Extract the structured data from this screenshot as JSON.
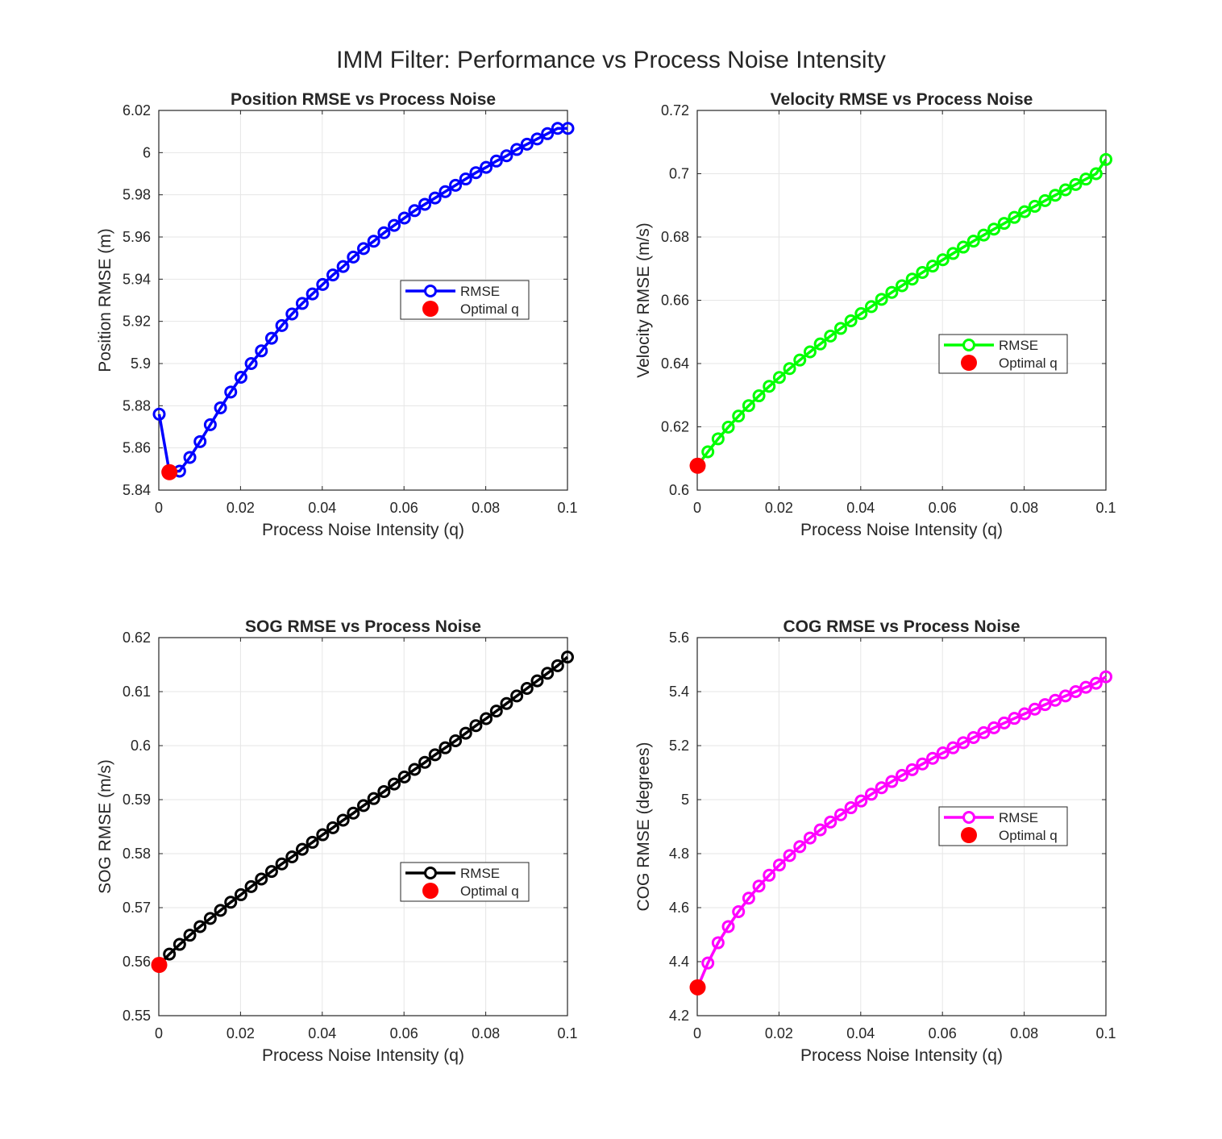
{
  "figure": {
    "suptitle": "IMM Filter: Performance vs Process Noise Intensity"
  },
  "chart_data": [
    {
      "type": "line",
      "title": "Position RMSE vs Process Noise",
      "xlabel": "Process Noise Intensity (q)",
      "ylabel": "Position RMSE (m)",
      "xlim": [
        0,
        0.1
      ],
      "ylim": [
        5.84,
        6.02
      ],
      "xticks": [
        "0",
        "0.02",
        "0.04",
        "0.06",
        "0.08",
        "0.1"
      ],
      "yticks": [
        "5.84",
        "5.86",
        "5.88",
        "5.9",
        "5.92",
        "5.94",
        "5.96",
        "5.98",
        "6",
        "6.02"
      ],
      "grid": true,
      "legend_placement": "right-middle",
      "color": "#0000ff",
      "series": [
        {
          "name": "RMSE",
          "x": [
            0.0001,
            0.0026,
            0.0051,
            0.0076,
            0.0101,
            0.0126,
            0.0151,
            0.0176,
            0.0201,
            0.0226,
            0.0251,
            0.0276,
            0.0301,
            0.0326,
            0.0351,
            0.0376,
            0.0401,
            0.0426,
            0.0451,
            0.0476,
            0.0501,
            0.0526,
            0.0551,
            0.0576,
            0.0601,
            0.0626,
            0.0651,
            0.0676,
            0.0701,
            0.0726,
            0.0751,
            0.0776,
            0.0801,
            0.0826,
            0.0851,
            0.0876,
            0.0901,
            0.0926,
            0.0951,
            0.0976,
            0.1001
          ],
          "y": [
            5.876,
            5.8485,
            5.849,
            5.8555,
            5.863,
            5.871,
            5.879,
            5.8865,
            5.8935,
            5.9,
            5.906,
            5.912,
            5.918,
            5.9235,
            5.9285,
            5.933,
            5.9375,
            5.942,
            5.946,
            5.9505,
            5.9545,
            5.958,
            5.962,
            5.9655,
            5.969,
            5.9725,
            5.9755,
            5.9785,
            5.9815,
            5.9845,
            5.9875,
            5.9905,
            5.993,
            5.996,
            5.9985,
            6.0015,
            6.004,
            6.0065,
            6.009,
            6.0115,
            6.0115
          ]
        }
      ],
      "optimal": {
        "name": "Optimal q",
        "x": 0.0026,
        "y": 5.8485
      },
      "legend": [
        "RMSE",
        "Optimal q"
      ]
    },
    {
      "type": "line",
      "title": "Velocity RMSE vs Process Noise",
      "xlabel": "Process Noise Intensity (q)",
      "ylabel": "Velocity RMSE (m/s)",
      "xlim": [
        0,
        0.1
      ],
      "ylim": [
        0.6,
        0.72
      ],
      "xticks": [
        "0",
        "0.02",
        "0.04",
        "0.06",
        "0.08",
        "0.1"
      ],
      "yticks": [
        "0.6",
        "0.62",
        "0.64",
        "0.66",
        "0.68",
        "0.7",
        "0.72"
      ],
      "grid": true,
      "legend_placement": "right-middle",
      "color": "#00ff00",
      "series": [
        {
          "name": "RMSE",
          "x": [
            0.0001,
            0.0026,
            0.0051,
            0.0076,
            0.0101,
            0.0126,
            0.0151,
            0.0176,
            0.0201,
            0.0226,
            0.0251,
            0.0276,
            0.0301,
            0.0326,
            0.0351,
            0.0376,
            0.0401,
            0.0426,
            0.0451,
            0.0476,
            0.0501,
            0.0526,
            0.0551,
            0.0576,
            0.0601,
            0.0626,
            0.0651,
            0.0676,
            0.0701,
            0.0726,
            0.0751,
            0.0776,
            0.0801,
            0.0826,
            0.0851,
            0.0876,
            0.0901,
            0.0926,
            0.0951,
            0.0976,
            0.1
          ],
          "y": [
            0.6077,
            0.6121,
            0.6162,
            0.6199,
            0.6234,
            0.6267,
            0.6298,
            0.6328,
            0.6356,
            0.6384,
            0.6411,
            0.6437,
            0.6462,
            0.6487,
            0.6511,
            0.6535,
            0.6558,
            0.658,
            0.6603,
            0.6625,
            0.6646,
            0.6667,
            0.6688,
            0.6708,
            0.6728,
            0.6748,
            0.6768,
            0.6787,
            0.6806,
            0.6825,
            0.6843,
            0.6862,
            0.688,
            0.6897,
            0.6915,
            0.6932,
            0.6949,
            0.6966,
            0.6983,
            0.7,
            0.7045
          ]
        }
      ],
      "optimal": {
        "name": "Optimal q",
        "x": 0.0001,
        "y": 0.6077
      },
      "legend": [
        "RMSE",
        "Optimal q"
      ]
    },
    {
      "type": "line",
      "title": "SOG RMSE vs Process Noise",
      "xlabel": "Process Noise Intensity (q)",
      "ylabel": "SOG RMSE (m/s)",
      "xlim": [
        0,
        0.1
      ],
      "ylim": [
        0.55,
        0.62
      ],
      "xticks": [
        "0",
        "0.02",
        "0.04",
        "0.06",
        "0.08",
        "0.1"
      ],
      "yticks": [
        "0.55",
        "0.56",
        "0.57",
        "0.58",
        "0.59",
        "0.6",
        "0.61",
        "0.62"
      ],
      "grid": true,
      "legend_placement": "right-bottom",
      "color": "#000000",
      "series": [
        {
          "name": "RMSE",
          "x": [
            0.0001,
            0.0026,
            0.0051,
            0.0076,
            0.0101,
            0.0126,
            0.0151,
            0.0176,
            0.0201,
            0.0226,
            0.0251,
            0.0276,
            0.0301,
            0.0326,
            0.0351,
            0.0376,
            0.0401,
            0.0426,
            0.0451,
            0.0476,
            0.0501,
            0.0526,
            0.0551,
            0.0576,
            0.0601,
            0.0626,
            0.0651,
            0.0676,
            0.0701,
            0.0726,
            0.0751,
            0.0776,
            0.0801,
            0.0826,
            0.0851,
            0.0876,
            0.0901,
            0.0926,
            0.0951,
            0.0976,
            0.1
          ],
          "y": [
            0.5594,
            0.5614,
            0.5632,
            0.5649,
            0.5665,
            0.568,
            0.5695,
            0.571,
            0.5724,
            0.5739,
            0.5753,
            0.5767,
            0.5781,
            0.5794,
            0.5808,
            0.5821,
            0.5835,
            0.5848,
            0.5862,
            0.5875,
            0.5889,
            0.5902,
            0.5915,
            0.5929,
            0.5942,
            0.5956,
            0.5969,
            0.5983,
            0.5996,
            0.6009,
            0.6023,
            0.6037,
            0.605,
            0.6064,
            0.6078,
            0.6092,
            0.6106,
            0.612,
            0.6134,
            0.6148,
            0.6164
          ]
        }
      ],
      "optimal": {
        "name": "Optimal q",
        "x": 0.0001,
        "y": 0.5594
      },
      "legend": [
        "RMSE",
        "Optimal q"
      ]
    },
    {
      "type": "line",
      "title": "COG RMSE vs Process Noise",
      "xlabel": "Process Noise Intensity (q)",
      "ylabel": "COG RMSE (degrees)",
      "xlim": [
        0,
        0.1
      ],
      "ylim": [
        4.2,
        5.6
      ],
      "xticks": [
        "0",
        "0.02",
        "0.04",
        "0.06",
        "0.08",
        "0.1"
      ],
      "yticks": [
        "4.2",
        "4.4",
        "4.6",
        "4.8",
        "5",
        "5.2",
        "5.4",
        "5.6"
      ],
      "grid": true,
      "legend_placement": "right-middle",
      "color": "#ff00ff",
      "series": [
        {
          "name": "RMSE",
          "x": [
            0.0001,
            0.0026,
            0.0051,
            0.0076,
            0.0101,
            0.0126,
            0.0151,
            0.0176,
            0.0201,
            0.0226,
            0.0251,
            0.0276,
            0.0301,
            0.0326,
            0.0351,
            0.0376,
            0.0401,
            0.0426,
            0.0451,
            0.0476,
            0.0501,
            0.0526,
            0.0551,
            0.0576,
            0.0601,
            0.0626,
            0.0651,
            0.0676,
            0.0701,
            0.0726,
            0.0751,
            0.0776,
            0.0801,
            0.0826,
            0.0851,
            0.0876,
            0.0901,
            0.0926,
            0.0951,
            0.0976,
            0.1
          ],
          "y": [
            4.305,
            4.395,
            4.47,
            4.53,
            4.585,
            4.635,
            4.68,
            4.72,
            4.758,
            4.793,
            4.826,
            4.858,
            4.888,
            4.917,
            4.944,
            4.97,
            4.995,
            5.02,
            5.044,
            5.067,
            5.09,
            5.111,
            5.132,
            5.153,
            5.173,
            5.192,
            5.211,
            5.23,
            5.248,
            5.266,
            5.284,
            5.301,
            5.318,
            5.335,
            5.352,
            5.368,
            5.384,
            5.4,
            5.416,
            5.431,
            5.455
          ]
        }
      ],
      "optimal": {
        "name": "Optimal q",
        "x": 0.0001,
        "y": 4.305
      },
      "legend": [
        "RMSE",
        "Optimal q"
      ]
    }
  ]
}
